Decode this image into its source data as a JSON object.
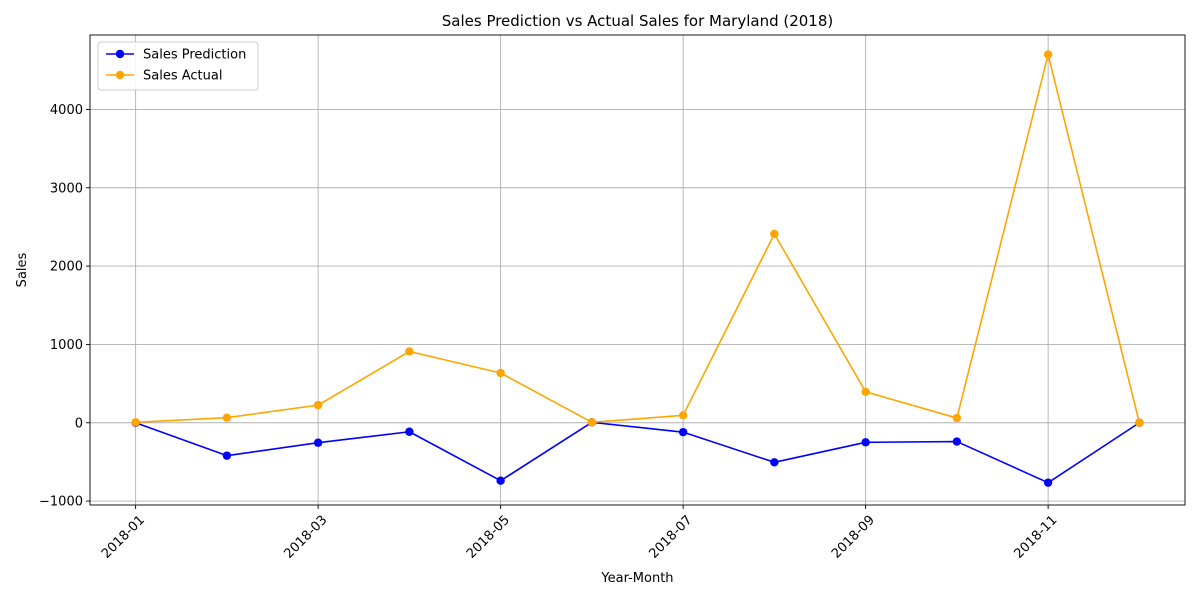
{
  "chart_data": {
    "type": "line",
    "title": "Sales Prediction vs Actual Sales for Maryland (2018)",
    "xlabel": "Year-Month",
    "ylabel": "Sales",
    "x": [
      "2018-01",
      "2018-02",
      "2018-03",
      "2018-04",
      "2018-05",
      "2018-06",
      "2018-07",
      "2018-08",
      "2018-09",
      "2018-10",
      "2018-11",
      "2018-12"
    ],
    "x_tick_labels": [
      "2018-01",
      "2018-03",
      "2018-05",
      "2018-07",
      "2018-09",
      "2018-11"
    ],
    "ylim": [
      -1050,
      4950
    ],
    "y_ticks": [
      -1000,
      0,
      1000,
      2000,
      3000,
      4000
    ],
    "y_tick_labels": [
      "−1000",
      "0",
      "1000",
      "2000",
      "3000",
      "4000"
    ],
    "grid": true,
    "legend_position": "top-left",
    "series": [
      {
        "name": "Sales Prediction",
        "color": "#0000ff",
        "values": [
          0,
          -420,
          -255,
          -115,
          -740,
          5,
          -120,
          -505,
          -250,
          -240,
          -765,
          0
        ]
      },
      {
        "name": "Sales Actual",
        "color": "#ffa500",
        "values": [
          5,
          65,
          225,
          910,
          635,
          5,
          95,
          2410,
          395,
          60,
          4700,
          0
        ]
      }
    ]
  }
}
